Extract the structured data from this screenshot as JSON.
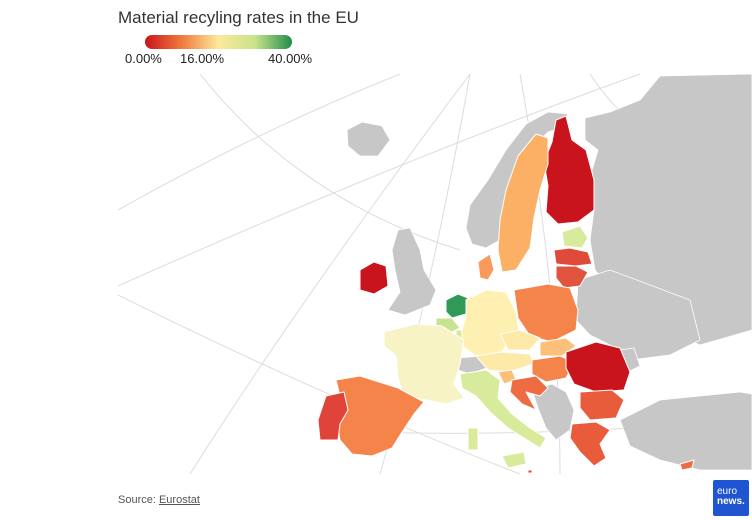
{
  "title": "Material recyling rates in the EU",
  "legend": {
    "labels": [
      "0.00%",
      "16.00%",
      "40.00%"
    ],
    "colors": [
      "#c9141d",
      "#f07a3d",
      "#fde99a",
      "#c7e38c",
      "#1e8e4a"
    ]
  },
  "map": {
    "non_eu_color": "#c7c7c7",
    "graticule_color": "#dcdcdc",
    "regions": [
      {
        "name": "Finland",
        "color": "#c9141d"
      },
      {
        "name": "Sweden",
        "color": "#fcb066"
      },
      {
        "name": "Estonia",
        "color": "#d8eb9c"
      },
      {
        "name": "Latvia",
        "color": "#e04a3a"
      },
      {
        "name": "Lithuania",
        "color": "#e0533c"
      },
      {
        "name": "Denmark",
        "color": "#f99a5b"
      },
      {
        "name": "Ireland",
        "color": "#c9141d"
      },
      {
        "name": "Netherlands",
        "color": "#2f9a57"
      },
      {
        "name": "Belgium",
        "color": "#c6e490"
      },
      {
        "name": "Luxembourg",
        "color": "#d8eb9c"
      },
      {
        "name": "Germany",
        "color": "#fef0b0"
      },
      {
        "name": "Poland",
        "color": "#f5844a"
      },
      {
        "name": "Czechia",
        "color": "#feeaa8"
      },
      {
        "name": "Slovakia",
        "color": "#fdc07a"
      },
      {
        "name": "Austria",
        "color": "#feeaa8"
      },
      {
        "name": "Hungary",
        "color": "#f5844a"
      },
      {
        "name": "Romania",
        "color": "#c9141d"
      },
      {
        "name": "Bulgaria",
        "color": "#e85c3c"
      },
      {
        "name": "Greece",
        "color": "#e85c3c"
      },
      {
        "name": "Slovenia",
        "color": "#fdbf76"
      },
      {
        "name": "Croatia",
        "color": "#ef6b42"
      },
      {
        "name": "France",
        "color": "#f7f3c4"
      },
      {
        "name": "Spain",
        "color": "#f5844a"
      },
      {
        "name": "Portugal",
        "color": "#e0433a"
      },
      {
        "name": "Italy",
        "color": "#d8eb9c"
      },
      {
        "name": "Malta",
        "color": "#e0433a"
      },
      {
        "name": "Cyprus",
        "color": "#ef6b42"
      }
    ]
  },
  "source": {
    "prefix": "Source: ",
    "link": "Eurostat"
  },
  "logo": {
    "line1": "euro",
    "line2": "news."
  }
}
